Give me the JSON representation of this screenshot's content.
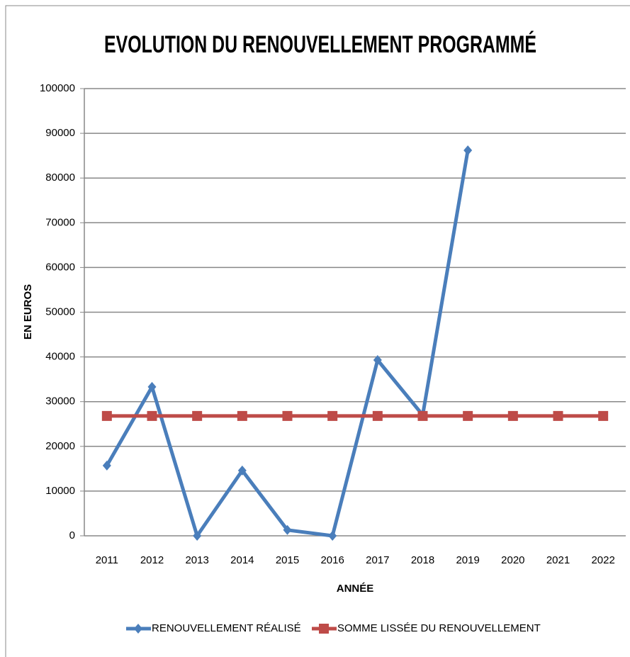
{
  "chart_data": {
    "type": "line",
    "title": "EVOLUTION DU RENOUVELLEMENT PROGRAMMÉ",
    "xlabel": "ANNÉE",
    "ylabel": "EN EUROS",
    "categories": [
      "2011",
      "2012",
      "2013",
      "2014",
      "2015",
      "2016",
      "2017",
      "2018",
      "2019",
      "2020",
      "2021",
      "2022"
    ],
    "series": [
      {
        "name": "RENOUVELLEMENT RÉALISÉ",
        "color": "#4a7ebb",
        "marker": "diamond",
        "values": [
          15700,
          33300,
          0,
          14600,
          1300,
          0,
          39300,
          27000,
          86200,
          null,
          null,
          null
        ]
      },
      {
        "name": "SOMME LISSÉE DU RENOUVELLEMENT",
        "color": "#be4b48",
        "marker": "square",
        "values": [
          26800,
          26800,
          26800,
          26800,
          26800,
          26800,
          26800,
          26800,
          26800,
          26800,
          26800,
          26800
        ]
      }
    ],
    "ylim": [
      0,
      100000
    ],
    "yticks": [
      0,
      10000,
      20000,
      30000,
      40000,
      50000,
      60000,
      70000,
      80000,
      90000,
      100000
    ],
    "grid": true,
    "legend": "bottom"
  }
}
